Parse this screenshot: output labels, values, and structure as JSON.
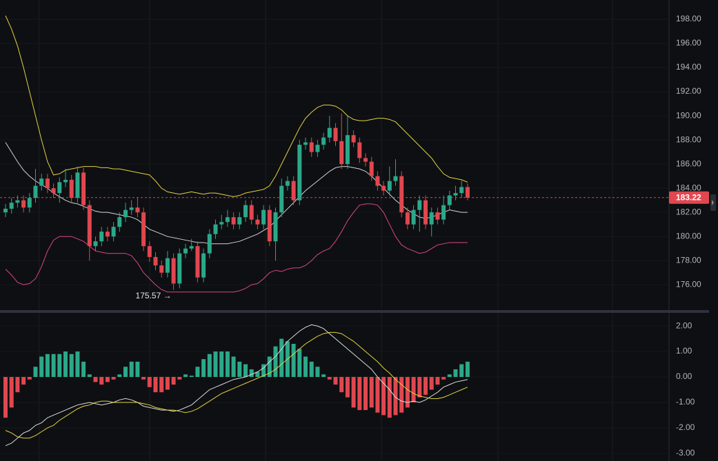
{
  "chart_data": [
    {
      "type": "candlestick",
      "open": [
        182.0,
        182.3,
        182.8,
        183.0,
        182.4,
        183.2,
        184.2,
        184.8,
        184.0,
        183.6,
        184.5,
        184.7,
        183.2,
        185.3,
        182.6,
        179.2,
        179.6,
        180.4,
        180.0,
        180.8,
        181.6,
        182.2,
        182.4,
        182.0,
        179.2,
        178.3,
        177.6,
        177.0,
        178.2,
        176.1,
        178.6,
        179.0,
        179.2,
        176.6,
        178.6,
        180.2,
        181.0,
        181.2,
        181.6,
        181.0,
        181.6,
        182.6,
        181.4,
        181.0,
        182.2,
        179.6,
        182.0,
        184.2,
        184.6,
        183.0,
        187.6,
        187.8,
        187.0,
        187.6,
        188.2,
        189.0,
        187.9,
        186.0,
        188.4,
        187.8,
        186.5,
        186.2,
        185.0,
        184.2,
        183.8,
        184.6,
        185.0,
        182.0,
        181.0,
        182.2,
        183.0,
        181.0,
        182.0,
        181.4,
        182.6,
        183.4,
        183.6,
        184.1
      ],
      "high": [
        182.7,
        183.2,
        183.4,
        183.4,
        183.6,
        185.6,
        185.2,
        185.2,
        184.4,
        184.9,
        185.6,
        185.1,
        185.8,
        185.7,
        183.0,
        180.0,
        180.8,
        180.8,
        181.2,
        182.0,
        182.8,
        183.0,
        183.2,
        182.4,
        179.6,
        178.7,
        178.0,
        178.8,
        178.6,
        179.0,
        179.4,
        179.8,
        179.6,
        179.0,
        180.6,
        181.4,
        181.8,
        182.2,
        182.0,
        182.0,
        183.0,
        183.0,
        181.8,
        182.6,
        182.6,
        182.4,
        184.8,
        185.0,
        185.0,
        188.0,
        188.2,
        188.2,
        188.0,
        188.6,
        190.0,
        189.4,
        190.2,
        190.0,
        188.8,
        188.2,
        186.9,
        186.6,
        185.4,
        184.6,
        185.8,
        186.4,
        185.4,
        182.4,
        182.6,
        183.4,
        183.4,
        182.4,
        182.4,
        183.4,
        183.8,
        184.2,
        184.6,
        184.4
      ],
      "low": [
        181.6,
        181.9,
        182.4,
        182.0,
        182.0,
        182.8,
        183.8,
        183.6,
        183.2,
        182.8,
        184.1,
        182.8,
        182.8,
        182.2,
        178.0,
        178.8,
        179.2,
        179.6,
        179.6,
        180.4,
        181.2,
        181.8,
        181.6,
        178.8,
        177.9,
        177.2,
        176.6,
        176.6,
        175.57,
        175.7,
        178.2,
        178.8,
        176.2,
        176.2,
        178.2,
        179.8,
        180.6,
        180.8,
        180.6,
        180.6,
        181.2,
        181.0,
        180.6,
        180.6,
        179.2,
        178.0,
        181.6,
        183.8,
        182.6,
        182.6,
        187.2,
        186.6,
        186.6,
        187.2,
        187.8,
        187.5,
        185.6,
        185.6,
        187.4,
        186.1,
        185.8,
        184.6,
        183.8,
        183.4,
        183.4,
        184.2,
        181.6,
        180.6,
        180.6,
        180.4,
        180.6,
        180.0,
        181.0,
        181.0,
        182.2,
        183.0,
        183.2,
        183.0
      ],
      "close": [
        182.3,
        182.8,
        183.0,
        182.4,
        183.2,
        184.2,
        184.8,
        184.0,
        183.6,
        184.5,
        184.7,
        183.2,
        185.3,
        182.6,
        179.2,
        179.6,
        180.4,
        180.0,
        180.8,
        181.6,
        182.2,
        182.4,
        182.0,
        179.2,
        178.3,
        177.6,
        177.0,
        178.2,
        176.1,
        178.6,
        179.0,
        179.2,
        176.6,
        178.6,
        180.2,
        181.0,
        181.2,
        181.6,
        181.0,
        181.6,
        182.6,
        181.4,
        181.0,
        182.2,
        179.6,
        182.0,
        184.2,
        184.6,
        183.0,
        187.6,
        187.8,
        187.0,
        187.6,
        188.2,
        189.0,
        187.9,
        186.0,
        188.4,
        187.8,
        186.5,
        186.2,
        185.0,
        184.2,
        183.8,
        184.6,
        185.0,
        182.0,
        181.0,
        182.2,
        183.0,
        181.0,
        182.0,
        181.4,
        182.6,
        183.4,
        183.6,
        184.1,
        183.22
      ],
      "up_color": "#2ba88a",
      "down_color": "#e0474f",
      "series": [
        {
          "color": "#e4d33f",
          "values": [
            198.3,
            197.2,
            195.8,
            194.0,
            192.0,
            190.0,
            188.0,
            186.2,
            185.1,
            185.2,
            185.5,
            185.6,
            185.7,
            185.8,
            185.8,
            185.8,
            185.7,
            185.7,
            185.6,
            185.6,
            185.5,
            185.4,
            185.3,
            185.2,
            185.1,
            184.6,
            184.0,
            183.7,
            183.6,
            183.5,
            183.6,
            183.7,
            183.6,
            183.5,
            183.6,
            183.6,
            183.5,
            183.4,
            183.3,
            183.4,
            183.6,
            183.7,
            183.8,
            183.9,
            184.2,
            185.0,
            186.0,
            187.0,
            188.0,
            189.0,
            189.8,
            190.3,
            190.7,
            190.9,
            190.9,
            190.8,
            190.5,
            190.0,
            189.7,
            189.6,
            189.6,
            189.7,
            189.8,
            189.8,
            189.7,
            189.5,
            189.0,
            188.5,
            188.0,
            187.5,
            187.0,
            186.5,
            185.8,
            185.2,
            184.9,
            184.8,
            184.7,
            184.5
          ]
        },
        {
          "color": "#d4d4d4",
          "values": [
            187.8,
            187.0,
            186.2,
            185.5,
            185.0,
            184.6,
            184.3,
            184.0,
            183.6,
            183.3,
            183.0,
            182.8,
            182.7,
            182.5,
            182.3,
            182.1,
            182.0,
            182.0,
            181.9,
            181.8,
            181.7,
            181.6,
            181.4,
            181.0,
            180.6,
            180.4,
            180.2,
            180.0,
            179.9,
            179.8,
            179.7,
            179.6,
            179.5,
            179.5,
            179.4,
            179.4,
            179.4,
            179.4,
            179.5,
            179.6,
            179.8,
            180.0,
            180.2,
            180.5,
            180.8,
            181.3,
            181.8,
            182.3,
            182.8,
            183.3,
            183.8,
            184.2,
            184.6,
            185.0,
            185.4,
            185.7,
            185.8,
            185.8,
            185.7,
            185.6,
            185.4,
            185.0,
            184.5,
            184.0,
            183.5,
            183.0,
            182.6,
            182.2,
            181.9,
            181.6,
            181.5,
            181.6,
            181.8,
            182.0,
            182.2,
            182.1,
            182.0,
            182.0
          ]
        },
        {
          "color": "#d9468f",
          "values": [
            177.3,
            176.8,
            176.2,
            176.0,
            176.1,
            176.5,
            177.5,
            178.8,
            179.7,
            180.0,
            180.0,
            180.0,
            179.8,
            179.6,
            179.2,
            178.8,
            178.7,
            178.6,
            178.6,
            178.6,
            178.6,
            178.4,
            177.8,
            177.0,
            176.5,
            176.0,
            175.6,
            175.4,
            175.4,
            175.4,
            175.4,
            175.4,
            175.4,
            175.4,
            175.4,
            175.4,
            175.4,
            175.4,
            175.4,
            175.5,
            175.7,
            176.0,
            176.1,
            176.5,
            177.0,
            177.2,
            177.1,
            177.3,
            177.4,
            177.4,
            177.6,
            178.0,
            178.5,
            178.8,
            179.0,
            179.6,
            180.4,
            181.3,
            182.0,
            182.6,
            182.7,
            182.7,
            182.6,
            182.0,
            181.0,
            180.0,
            179.3,
            179.0,
            178.8,
            178.6,
            178.7,
            179.0,
            179.3,
            179.4,
            179.5,
            179.5,
            179.5,
            179.5
          ]
        }
      ],
      "ylim": [
        173.9,
        199.6
      ],
      "yticks": [
        {
          "value": 176,
          "label": "176.00"
        },
        {
          "value": 178,
          "label": "178.00"
        },
        {
          "value": 180,
          "label": "180.00"
        },
        {
          "value": 182,
          "label": "182.00"
        },
        {
          "value": 184,
          "label": "184.00"
        },
        {
          "value": 186,
          "label": "186.00"
        },
        {
          "value": 188,
          "label": "188.00"
        },
        {
          "value": 190,
          "label": "190.00"
        },
        {
          "value": 192,
          "label": "192.00"
        },
        {
          "value": 194,
          "label": "194.00"
        },
        {
          "value": 196,
          "label": "196.00"
        },
        {
          "value": 198,
          "label": "198.00"
        }
      ],
      "grid": true,
      "last_price": 183.22,
      "last_price_color": "#e0474f",
      "low_annotation": {
        "value": 175.57,
        "label": "175.57 →"
      }
    },
    {
      "type": "macd",
      "histogram": [
        -1.6,
        -1.2,
        -0.6,
        -0.3,
        -0.1,
        0.4,
        0.8,
        0.9,
        0.9,
        0.9,
        1.0,
        0.9,
        1.0,
        0.6,
        0.1,
        -0.2,
        -0.3,
        -0.2,
        -0.1,
        0.1,
        0.4,
        0.6,
        0.6,
        -0.1,
        -0.4,
        -0.6,
        -0.6,
        -0.5,
        -0.3,
        -0.1,
        0.1,
        0.05,
        0.4,
        0.7,
        0.9,
        1.0,
        1.0,
        1.0,
        0.8,
        0.6,
        0.5,
        0.3,
        0.2,
        0.5,
        0.8,
        1.2,
        1.5,
        1.4,
        1.3,
        1.1,
        0.8,
        0.6,
        0.4,
        0.1,
        -0.1,
        -0.3,
        -0.6,
        -0.8,
        -1.2,
        -1.3,
        -1.3,
        -1.2,
        -1.4,
        -1.5,
        -1.6,
        -1.5,
        -1.4,
        -1.2,
        -1.0,
        -0.8,
        -0.7,
        -0.5,
        -0.3,
        -0.1,
        0.1,
        0.3,
        0.5,
        0.6
      ],
      "up_color": "#2ba88a",
      "down_color": "#e0474f",
      "series": [
        {
          "color": "#dcdcdc",
          "values": [
            -2.7,
            -2.6,
            -2.4,
            -2.2,
            -2.1,
            -1.9,
            -1.8,
            -1.6,
            -1.5,
            -1.4,
            -1.3,
            -1.2,
            -1.1,
            -1.05,
            -1.0,
            -1.05,
            -1.1,
            -1.05,
            -1.0,
            -0.9,
            -0.85,
            -0.9,
            -1.0,
            -1.15,
            -1.2,
            -1.25,
            -1.3,
            -1.3,
            -1.35,
            -1.3,
            -1.2,
            -1.1,
            -0.9,
            -0.7,
            -0.5,
            -0.4,
            -0.3,
            -0.2,
            -0.1,
            -0.05,
            0.0,
            0.1,
            0.2,
            0.35,
            0.6,
            0.8,
            1.1,
            1.4,
            1.6,
            1.8,
            1.95,
            2.05,
            2.0,
            1.9,
            1.7,
            1.5,
            1.3,
            1.1,
            0.9,
            0.7,
            0.5,
            0.3,
            0.0,
            -0.25,
            -0.5,
            -0.8,
            -0.95,
            -1.0,
            -0.95,
            -1.0,
            -0.9,
            -0.75,
            -0.6,
            -0.4,
            -0.3,
            -0.2,
            -0.15,
            -0.1
          ]
        },
        {
          "color": "#e4d33f",
          "values": [
            -2.1,
            -2.2,
            -2.35,
            -2.4,
            -2.4,
            -2.3,
            -2.15,
            -2.0,
            -1.9,
            -1.7,
            -1.55,
            -1.4,
            -1.25,
            -1.15,
            -1.1,
            -1.0,
            -0.95,
            -0.95,
            -1.0,
            -1.0,
            -1.0,
            -1.0,
            -1.0,
            -1.05,
            -1.1,
            -1.2,
            -1.25,
            -1.3,
            -1.3,
            -1.35,
            -1.4,
            -1.35,
            -1.25,
            -1.1,
            -0.95,
            -0.8,
            -0.65,
            -0.55,
            -0.45,
            -0.35,
            -0.25,
            -0.15,
            -0.05,
            0.05,
            0.15,
            0.3,
            0.5,
            0.7,
            0.9,
            1.1,
            1.3,
            1.45,
            1.6,
            1.7,
            1.75,
            1.75,
            1.7,
            1.55,
            1.4,
            1.2,
            1.0,
            0.8,
            0.6,
            0.35,
            0.15,
            -0.1,
            -0.3,
            -0.5,
            -0.65,
            -0.75,
            -0.8,
            -0.85,
            -0.85,
            -0.8,
            -0.7,
            -0.6,
            -0.5,
            -0.4
          ]
        }
      ],
      "ylim": [
        -3.3,
        2.49
      ],
      "yticks": [
        {
          "value": -3,
          "label": "-3.00"
        },
        {
          "value": -2,
          "label": "-2.00"
        },
        {
          "value": -1,
          "label": "-1.00"
        },
        {
          "value": 0,
          "label": "0.00"
        },
        {
          "value": 1,
          "label": "1.00"
        },
        {
          "value": 2,
          "label": "2.00"
        }
      ],
      "grid": true
    }
  ]
}
